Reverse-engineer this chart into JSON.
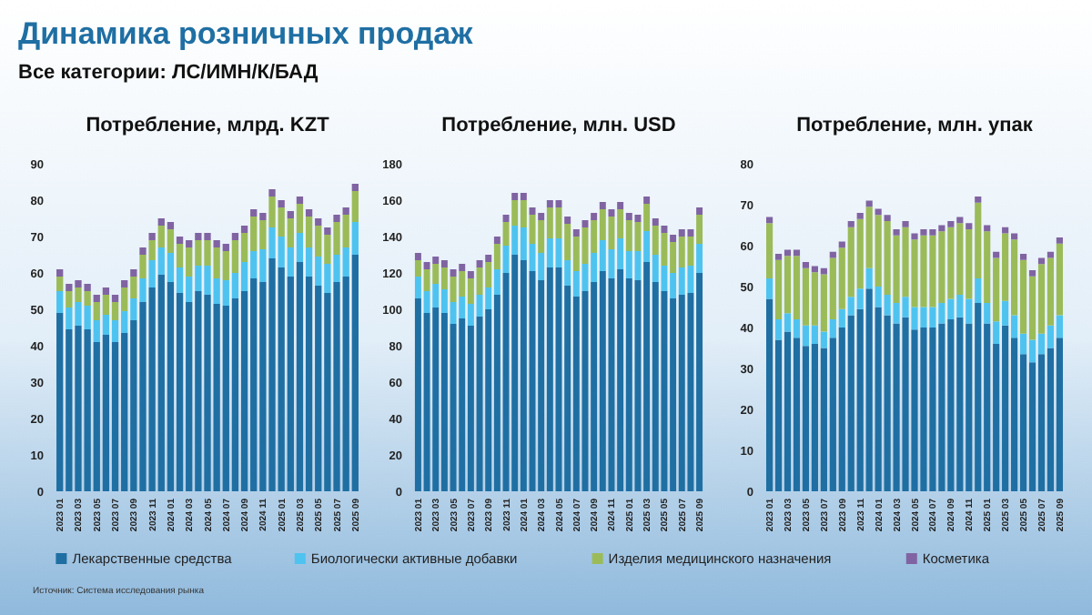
{
  "chart_data": [
    {
      "type": "bar",
      "stacked": true,
      "title": "Потребление, млрд. KZT",
      "legend": "bottom",
      "annotations": [
        "Динамика розничных продаж",
        "Все категории: ЛС/ИМН/К/БАД",
        "Источник: Система исследования рынка"
      ],
      "categories": [
        "2023 01",
        null,
        "2023 03",
        null,
        "2023 05",
        null,
        "2023 07",
        null,
        "2023 09",
        null,
        "2023 11",
        null,
        "2024 01",
        null,
        "2024 03",
        null,
        "2024 05",
        null,
        "2024 07",
        null,
        "2024 09",
        null,
        "2024 11",
        null,
        "2025 01",
        null,
        "2025 03",
        null,
        "2025 05",
        null,
        "2025 07",
        null,
        "2025 09"
      ],
      "ylim": [
        0,
        90
      ],
      "yticks": [
        0,
        10,
        20,
        30,
        40,
        50,
        60,
        70,
        80,
        90
      ],
      "series": [
        {
          "name": "Лекарственные средства",
          "color": "#1f6fa3",
          "values": [
            49,
            44.5,
            45.5,
            44.5,
            41,
            43,
            41,
            43.5,
            47,
            52,
            56,
            59.5,
            57.5,
            54.5,
            52,
            55,
            54,
            51.5,
            51,
            53,
            55,
            58.5,
            57.5,
            64,
            61.5,
            59,
            63,
            59,
            56.5,
            54.5,
            57.5,
            59,
            65
          ]
        },
        {
          "name": "Биологически активные добавки",
          "color": "#4fc3f0",
          "values": [
            6,
            6,
            6.5,
            6.5,
            6,
            5.5,
            6,
            6,
            6,
            6.5,
            7.5,
            7.5,
            8,
            7,
            7,
            7,
            8,
            7,
            7,
            7,
            8,
            7.5,
            9,
            8.5,
            8.5,
            8,
            8,
            8,
            8,
            8,
            7.5,
            8,
            9
          ]
        },
        {
          "name": "Изделия медицинского назначения",
          "color": "#9bbb59",
          "values": [
            4,
            4.5,
            4,
            4,
            5,
            5.5,
            5,
            6.5,
            6,
            6.5,
            5.5,
            6,
            6.5,
            6.5,
            8,
            7,
            7,
            8.5,
            8,
            9,
            8,
            9.5,
            8,
            8.5,
            8,
            8,
            8,
            8.5,
            8.5,
            8,
            9,
            9,
            8.5
          ]
        },
        {
          "name": "Косметика",
          "color": "#8064a2",
          "values": [
            2,
            2,
            2,
            2,
            2,
            2,
            2,
            2,
            2,
            2,
            2,
            2,
            2,
            2,
            2,
            2,
            2,
            2,
            2,
            2,
            2,
            2,
            2,
            2,
            2,
            2,
            2,
            2,
            2,
            2,
            2,
            2,
            2
          ]
        }
      ]
    },
    {
      "type": "bar",
      "stacked": true,
      "title": "Потребление, млн. USD",
      "categories": [
        "2023 01",
        null,
        "2023 03",
        null,
        "2023 05",
        null,
        "2023 07",
        null,
        "2023 09",
        null,
        "2023 11",
        null,
        "2024 01",
        null,
        "2024 03",
        null,
        "2024 05",
        null,
        "2024 07",
        null,
        "2024 09",
        null,
        "2024 11",
        null,
        "2025 01",
        null,
        "2025 03",
        null,
        "2025 05",
        null,
        "2025 07",
        null,
        "2025 09"
      ],
      "ylim": [
        0,
        180
      ],
      "yticks": [
        0,
        20,
        40,
        60,
        80,
        100,
        120,
        140,
        160,
        180
      ],
      "series": [
        {
          "color": "#1f6fa3",
          "values": [
            106,
            98,
            101,
            98,
            92,
            95,
            91,
            96,
            100,
            108,
            120,
            130,
            127,
            121,
            116,
            123,
            123,
            113,
            107,
            110,
            115,
            121,
            117,
            122,
            117,
            116,
            126,
            115,
            110,
            106,
            108,
            109,
            120
          ]
        },
        {
          "color": "#4fc3f0",
          "values": [
            12,
            12,
            13,
            13,
            12,
            12,
            12,
            12,
            12,
            14,
            15,
            16,
            18,
            15,
            15,
            16,
            16,
            14,
            14,
            15,
            16,
            17,
            16,
            17,
            15,
            16,
            17,
            15,
            14,
            14,
            15,
            15,
            16
          ]
        },
        {
          "color": "#9bbb59",
          "values": [
            9,
            12,
            11,
            12,
            14,
            14,
            14,
            15,
            14,
            14,
            13,
            14,
            15,
            16,
            18,
            17,
            17,
            20,
            19,
            20,
            18,
            17,
            18,
            16,
            17,
            16,
            15,
            16,
            18,
            17,
            17,
            16,
            16
          ]
        },
        {
          "color": "#8064a2",
          "values": [
            4,
            4,
            4,
            4,
            4,
            4,
            4,
            4,
            4,
            4,
            4,
            4,
            4,
            4,
            4,
            4,
            4,
            4,
            4,
            4,
            4,
            4,
            4,
            4,
            4,
            4,
            4,
            4,
            4,
            4,
            4,
            4,
            4
          ]
        }
      ]
    },
    {
      "type": "bar",
      "stacked": true,
      "title": "Потребление, млн. упак",
      "categories": [
        "2023 01",
        null,
        "2023 03",
        null,
        "2023 05",
        null,
        "2023 07",
        null,
        "2023 09",
        null,
        "2023 11",
        null,
        "2024 01",
        null,
        "2024 03",
        null,
        "2024 05",
        null,
        "2024 07",
        null,
        "2024 09",
        null,
        "2024 11",
        null,
        "2025 01",
        null,
        "2025 03",
        null,
        "2025 05",
        null,
        "2025 07",
        null,
        "2025 09"
      ],
      "ylim": [
        0,
        80
      ],
      "yticks": [
        0,
        10,
        20,
        30,
        40,
        50,
        60,
        70,
        80
      ],
      "series": [
        {
          "color": "#1f6fa3",
          "values": [
            47,
            37,
            39,
            37.5,
            35.5,
            36,
            35,
            37.5,
            40,
            43,
            44.5,
            49.5,
            45,
            43,
            41,
            42.5,
            39.5,
            40,
            40,
            41,
            42,
            42.5,
            41,
            46,
            41,
            36,
            40.5,
            37.5,
            33.5,
            31.5,
            33.5,
            35,
            37.5
          ]
        },
        {
          "color": "#4fc3f0",
          "values": [
            5,
            5,
            4.5,
            4.5,
            5,
            4.5,
            4,
            4.5,
            4.5,
            4.5,
            5,
            5,
            5,
            5,
            5,
            5,
            5.5,
            5,
            5,
            5,
            5,
            5.5,
            6,
            6,
            5,
            5.5,
            6,
            5.5,
            5,
            5.5,
            5,
            5.5,
            5.5
          ]
        },
        {
          "color": "#9bbb59",
          "values": [
            13.5,
            14.5,
            14,
            15.5,
            14,
            13,
            14,
            15,
            15,
            17,
            17,
            15,
            17.5,
            18,
            16.5,
            17,
            16.5,
            17.5,
            17.5,
            17.5,
            17.5,
            17.5,
            17,
            18.5,
            17.5,
            15.5,
            16.5,
            18.5,
            18,
            15.5,
            17,
            16.5,
            17.5
          ]
        },
        {
          "color": "#8064a2",
          "values": [
            1.5,
            1.5,
            1.5,
            1.5,
            1.5,
            1.5,
            1.5,
            1.5,
            1.5,
            1.5,
            1.5,
            1.5,
            1.5,
            1.5,
            1.5,
            1.5,
            1.5,
            1.5,
            1.5,
            1.5,
            1.5,
            1.5,
            1.5,
            1.5,
            1.5,
            1.5,
            1.5,
            1.5,
            1.5,
            1.5,
            1.5,
            1.5,
            1.5
          ]
        }
      ]
    }
  ]
}
